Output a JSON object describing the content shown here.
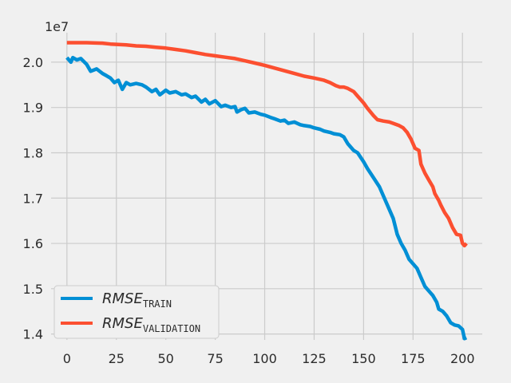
{
  "chart_data": {
    "type": "line",
    "title": "",
    "xlabel": "",
    "ylabel": "",
    "y_offset_label": "1e7",
    "xlim": [
      -8,
      210
    ],
    "ylim": [
      13870000.0,
      20650000.0
    ],
    "x_ticks": [
      0,
      25,
      50,
      75,
      100,
      125,
      150,
      175,
      200
    ],
    "x_tick_labels": [
      "0",
      "25",
      "50",
      "75",
      "100",
      "125",
      "150",
      "175",
      "200"
    ],
    "y_ticks": [
      14000000.0,
      15000000.0,
      16000000.0,
      17000000.0,
      18000000.0,
      19000000.0,
      20000000.0
    ],
    "y_tick_labels": [
      "1.4",
      "1.5",
      "1.6",
      "1.7",
      "1.8",
      "1.9",
      "2.0"
    ],
    "grid": true,
    "legend_position": "lower-left",
    "series": [
      {
        "name_main": "RMSE",
        "name_sub": "TRAIN",
        "color": "#008fd5",
        "points": [
          [
            0,
            20100000.0
          ],
          [
            2,
            20000000.0
          ],
          [
            3,
            20100000.0
          ],
          [
            5,
            20050000.0
          ],
          [
            7,
            20080000.0
          ],
          [
            10,
            19950000.0
          ],
          [
            12,
            19800000.0
          ],
          [
            15,
            19850000.0
          ],
          [
            18,
            19750000.0
          ],
          [
            20,
            19700000.0
          ],
          [
            22,
            19650000.0
          ],
          [
            24,
            19550000.0
          ],
          [
            26,
            19600000.0
          ],
          [
            28,
            19400000.0
          ],
          [
            30,
            19550000.0
          ],
          [
            32,
            19500000.0
          ],
          [
            35,
            19530000.0
          ],
          [
            38,
            19500000.0
          ],
          [
            40,
            19450000.0
          ],
          [
            43,
            19350000.0
          ],
          [
            45,
            19400000.0
          ],
          [
            47,
            19280000.0
          ],
          [
            50,
            19380000.0
          ],
          [
            52,
            19320000.0
          ],
          [
            55,
            19350000.0
          ],
          [
            58,
            19280000.0
          ],
          [
            60,
            19300000.0
          ],
          [
            63,
            19220000.0
          ],
          [
            65,
            19250000.0
          ],
          [
            68,
            19120000.0
          ],
          [
            70,
            19180000.0
          ],
          [
            72,
            19080000.0
          ],
          [
            75,
            19150000.0
          ],
          [
            78,
            19020000.0
          ],
          [
            80,
            19050000.0
          ],
          [
            83,
            19000000.0
          ],
          [
            85,
            19020000.0
          ],
          [
            86,
            18900000.0
          ],
          [
            88,
            18950000.0
          ],
          [
            90,
            18980000.0
          ],
          [
            92,
            18880000.0
          ],
          [
            95,
            18900000.0
          ],
          [
            98,
            18850000.0
          ],
          [
            100,
            18830000.0
          ],
          [
            103,
            18780000.0
          ],
          [
            105,
            18750000.0
          ],
          [
            108,
            18700000.0
          ],
          [
            110,
            18720000.0
          ],
          [
            112,
            18650000.0
          ],
          [
            115,
            18680000.0
          ],
          [
            118,
            18620000.0
          ],
          [
            120,
            18600000.0
          ],
          [
            123,
            18580000.0
          ],
          [
            125,
            18550000.0
          ],
          [
            128,
            18520000.0
          ],
          [
            130,
            18480000.0
          ],
          [
            133,
            18450000.0
          ],
          [
            135,
            18420000.0
          ],
          [
            138,
            18400000.0
          ],
          [
            140,
            18350000.0
          ],
          [
            142,
            18200000.0
          ],
          [
            145,
            18050000.0
          ],
          [
            147,
            18000000.0
          ],
          [
            150,
            17800000.0
          ],
          [
            152,
            17650000.0
          ],
          [
            155,
            17450000.0
          ],
          [
            158,
            17250000.0
          ],
          [
            160,
            17050000.0
          ],
          [
            162,
            16850000.0
          ],
          [
            165,
            16550000.0
          ],
          [
            167,
            16200000.0
          ],
          [
            169,
            16000000.0
          ],
          [
            171,
            15850000.0
          ],
          [
            173,
            15650000.0
          ],
          [
            175,
            15550000.0
          ],
          [
            177,
            15450000.0
          ],
          [
            179,
            15250000.0
          ],
          [
            181,
            15050000.0
          ],
          [
            183,
            14950000.0
          ],
          [
            185,
            14850000.0
          ],
          [
            187,
            14700000.0
          ],
          [
            188,
            14550000.0
          ],
          [
            190,
            14500000.0
          ],
          [
            192,
            14400000.0
          ],
          [
            194,
            14250000.0
          ],
          [
            196,
            14200000.0
          ],
          [
            198,
            14180000.0
          ],
          [
            200,
            14100000.0
          ],
          [
            201,
            13900000.0
          ],
          [
            202,
            13920000.0
          ]
        ]
      },
      {
        "name_main": "RMSE",
        "name_sub": "VALIDATION",
        "color": "#fc4f30",
        "points": [
          [
            0,
            20430000.0
          ],
          [
            10,
            20430000.0
          ],
          [
            18,
            20420000.0
          ],
          [
            22,
            20400000.0
          ],
          [
            30,
            20380000.0
          ],
          [
            35,
            20360000.0
          ],
          [
            40,
            20350000.0
          ],
          [
            45,
            20330000.0
          ],
          [
            50,
            20310000.0
          ],
          [
            55,
            20280000.0
          ],
          [
            60,
            20250000.0
          ],
          [
            65,
            20210000.0
          ],
          [
            70,
            20170000.0
          ],
          [
            75,
            20140000.0
          ],
          [
            80,
            20110000.0
          ],
          [
            85,
            20080000.0
          ],
          [
            90,
            20030000.0
          ],
          [
            95,
            19980000.0
          ],
          [
            100,
            19930000.0
          ],
          [
            105,
            19870000.0
          ],
          [
            110,
            19810000.0
          ],
          [
            115,
            19750000.0
          ],
          [
            120,
            19690000.0
          ],
          [
            125,
            19650000.0
          ],
          [
            130,
            19600000.0
          ],
          [
            133,
            19550000.0
          ],
          [
            136,
            19480000.0
          ],
          [
            138,
            19450000.0
          ],
          [
            140,
            19450000.0
          ],
          [
            142,
            19420000.0
          ],
          [
            145,
            19350000.0
          ],
          [
            147,
            19250000.0
          ],
          [
            150,
            19100000.0
          ],
          [
            152,
            18980000.0
          ],
          [
            155,
            18820000.0
          ],
          [
            157,
            18730000.0
          ],
          [
            160,
            18700000.0
          ],
          [
            163,
            18680000.0
          ],
          [
            165,
            18650000.0
          ],
          [
            168,
            18600000.0
          ],
          [
            170,
            18550000.0
          ],
          [
            172,
            18450000.0
          ],
          [
            174,
            18300000.0
          ],
          [
            176,
            18100000.0
          ],
          [
            178,
            18050000.0
          ],
          [
            179,
            17750000.0
          ],
          [
            181,
            17550000.0
          ],
          [
            183,
            17400000.0
          ],
          [
            185,
            17250000.0
          ],
          [
            186,
            17100000.0
          ],
          [
            188,
            16950000.0
          ],
          [
            189,
            16850000.0
          ],
          [
            191,
            16680000.0
          ],
          [
            193,
            16550000.0
          ],
          [
            195,
            16350000.0
          ],
          [
            197,
            16200000.0
          ],
          [
            199,
            16180000.0
          ],
          [
            200,
            16000000.0
          ],
          [
            201,
            15950000.0
          ],
          [
            202,
            16000000.0
          ]
        ]
      }
    ]
  }
}
